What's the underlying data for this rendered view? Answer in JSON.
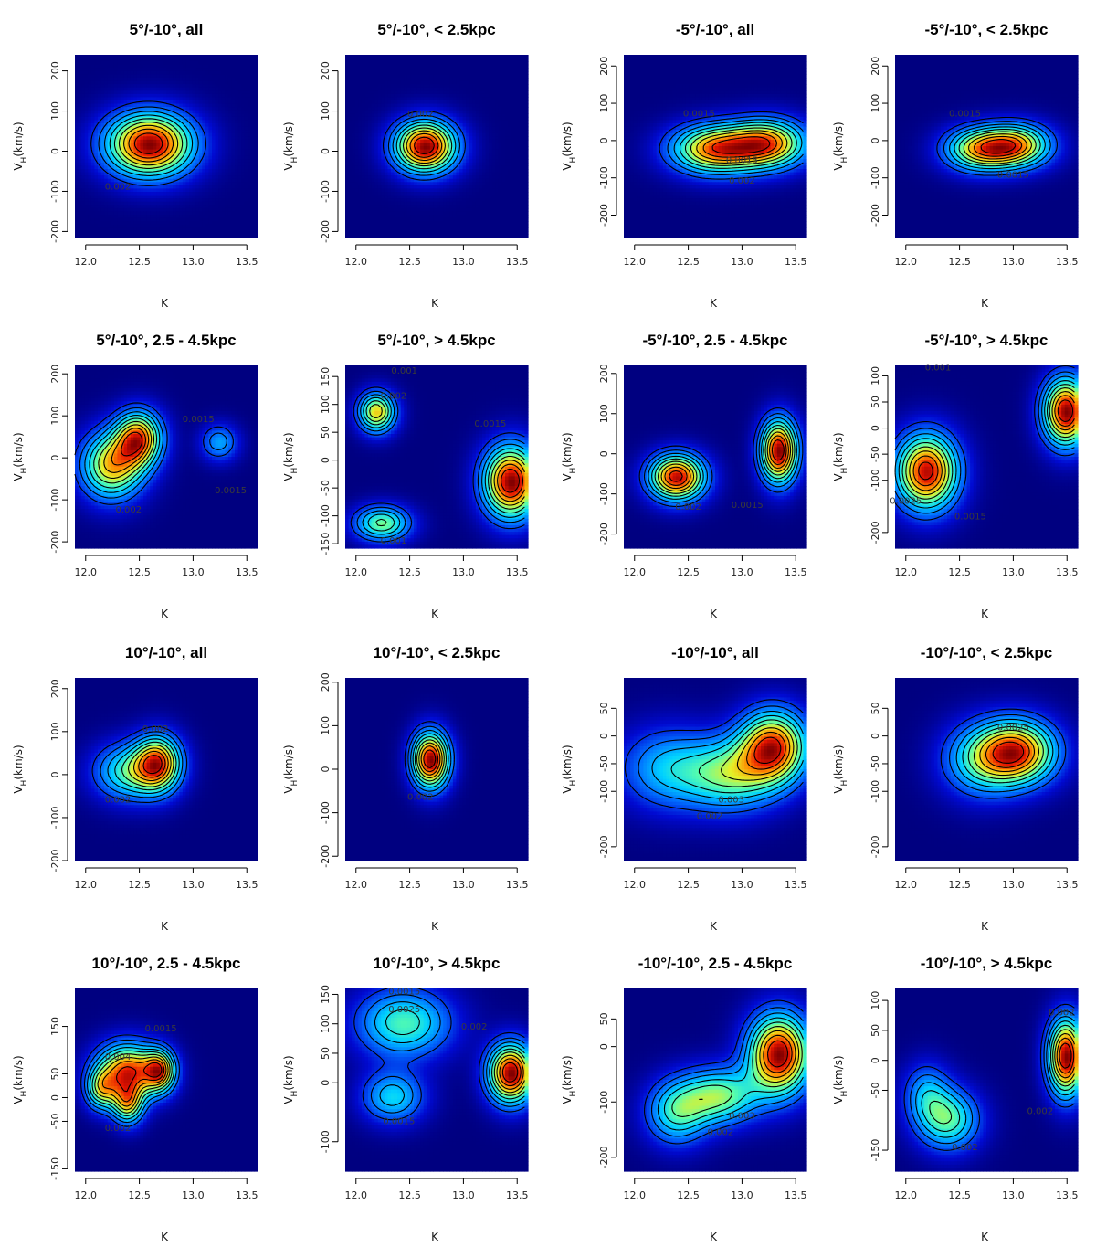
{
  "figure": {
    "xlabel": "K",
    "ylabel": "V",
    "ylabel_sub": "H",
    "ylabel_unit": "(km/s)"
  },
  "chart_data": [
    {
      "type": "heatmap",
      "title": "5°/-10°, all",
      "xlim": [
        11.9,
        13.6
      ],
      "ylim": [
        -215,
        240
      ],
      "xticks": [
        12.0,
        12.5,
        13.0,
        13.5
      ],
      "yticks": [
        -200,
        -100,
        0,
        100,
        200
      ],
      "blobs": [
        {
          "x": 12.6,
          "y": 15,
          "sx": 0.28,
          "sy": 55,
          "a": 1.0
        }
      ],
      "contour_labels": [
        {
          "text": "0.002",
          "x": 12.3,
          "y": -95
        }
      ]
    },
    {
      "type": "heatmap",
      "title": "5°/-10°, < 2.5kpc",
      "xlim": [
        11.9,
        13.6
      ],
      "ylim": [
        -215,
        240
      ],
      "xticks": [
        12.0,
        12.5,
        13.0,
        13.5
      ],
      "yticks": [
        -200,
        -100,
        0,
        100,
        200
      ],
      "blobs": [
        {
          "x": 12.65,
          "y": 10,
          "sx": 0.2,
          "sy": 45,
          "a": 1.0
        }
      ],
      "contour_labels": [
        {
          "text": "0.002",
          "x": 12.6,
          "y": 85
        }
      ]
    },
    {
      "type": "heatmap",
      "title": "-5°/-10°, all",
      "xlim": [
        11.9,
        13.6
      ],
      "ylim": [
        -260,
        230
      ],
      "xticks": [
        12.0,
        12.5,
        13.0,
        13.5
      ],
      "yticks": [
        -200,
        -100,
        0,
        100,
        200
      ],
      "blobs": [
        {
          "x": 12.75,
          "y": -25,
          "sx": 0.28,
          "sy": 45,
          "a": 1.0
        },
        {
          "x": 13.25,
          "y": -10,
          "sx": 0.25,
          "sy": 45,
          "a": 0.95
        }
      ],
      "contour_labels": [
        {
          "text": "0.0015",
          "x": 12.6,
          "y": 65
        },
        {
          "text": "0.0015",
          "x": 13.0,
          "y": -60
        },
        {
          "text": "0.002",
          "x": 13.0,
          "y": -115
        }
      ]
    },
    {
      "type": "heatmap",
      "title": "-5°/-10°, < 2.5kpc",
      "xlim": [
        11.9,
        13.6
      ],
      "ylim": [
        -260,
        230
      ],
      "xticks": [
        12.0,
        12.5,
        13.0,
        13.5
      ],
      "yticks": [
        -200,
        -100,
        0,
        100,
        200
      ],
      "blobs": [
        {
          "x": 12.7,
          "y": -25,
          "sx": 0.23,
          "sy": 40,
          "a": 1.0
        },
        {
          "x": 13.05,
          "y": -15,
          "sx": 0.22,
          "sy": 40,
          "a": 0.95
        }
      ],
      "contour_labels": [
        {
          "text": "0.0015",
          "x": 12.55,
          "y": 65
        },
        {
          "text": "0.0015",
          "x": 13.0,
          "y": -100
        }
      ]
    },
    {
      "type": "heatmap",
      "title": "5°/-10°, 2.5 - 4.5kpc",
      "xlim": [
        11.9,
        13.6
      ],
      "ylim": [
        -215,
        220
      ],
      "xticks": [
        12.0,
        12.5,
        13.0,
        13.5
      ],
      "yticks": [
        -200,
        -100,
        0,
        100,
        200
      ],
      "blobs": [
        {
          "x": 12.5,
          "y": 45,
          "sx": 0.15,
          "sy": 45,
          "a": 1.0
        },
        {
          "x": 12.25,
          "y": -20,
          "sx": 0.2,
          "sy": 55,
          "a": 0.9
        },
        {
          "x": 13.25,
          "y": 35,
          "sx": 0.12,
          "sy": 30,
          "a": 0.4
        }
      ],
      "contour_labels": [
        {
          "text": "0.0015",
          "x": 13.05,
          "y": 85
        },
        {
          "text": "0.002",
          "x": 12.4,
          "y": -130
        },
        {
          "text": "0.0015",
          "x": 13.35,
          "y": -85
        }
      ]
    },
    {
      "type": "heatmap",
      "title": "5°/-10°, > 4.5kpc",
      "xlim": [
        11.9,
        13.6
      ],
      "ylim": [
        -158,
        170
      ],
      "xticks": [
        12.0,
        12.5,
        13.0,
        13.5
      ],
      "yticks": [
        -150,
        -100,
        -50,
        0,
        50,
        100,
        150
      ],
      "blobs": [
        {
          "x": 13.45,
          "y": -40,
          "sx": 0.18,
          "sy": 45,
          "a": 1.0
        },
        {
          "x": 12.2,
          "y": 85,
          "sx": 0.12,
          "sy": 25,
          "a": 0.7
        },
        {
          "x": 12.25,
          "y": -115,
          "sx": 0.18,
          "sy": 22,
          "a": 0.55
        }
      ],
      "contour_labels": [
        {
          "text": "0.001",
          "x": 12.45,
          "y": 155
        },
        {
          "text": "0.002",
          "x": 12.35,
          "y": 110
        },
        {
          "text": "0.0015",
          "x": 13.25,
          "y": 60
        },
        {
          "text": "0.001",
          "x": 12.35,
          "y": -150
        }
      ]
    },
    {
      "type": "heatmap",
      "title": "-5°/-10°, 2.5 - 4.5kpc",
      "xlim": [
        11.9,
        13.6
      ],
      "ylim": [
        -235,
        220
      ],
      "xticks": [
        12.0,
        12.5,
        13.0,
        13.5
      ],
      "yticks": [
        -200,
        -100,
        0,
        100,
        200
      ],
      "blobs": [
        {
          "x": 12.4,
          "y": -60,
          "sx": 0.18,
          "sy": 40,
          "a": 0.95
        },
        {
          "x": 13.35,
          "y": 5,
          "sx": 0.12,
          "sy": 55,
          "a": 1.0
        }
      ],
      "contour_labels": [
        {
          "text": "0.002",
          "x": 12.5,
          "y": -140
        },
        {
          "text": "0.0015",
          "x": 13.05,
          "y": -135
        }
      ]
    },
    {
      "type": "heatmap",
      "title": "-5°/-10°, > 4.5kpc",
      "xlim": [
        11.9,
        13.6
      ],
      "ylim": [
        -230,
        120
      ],
      "xticks": [
        12.0,
        12.5,
        13.0,
        13.5
      ],
      "yticks": [
        -200,
        -100,
        -50,
        0,
        50,
        100
      ],
      "blobs": [
        {
          "x": 12.2,
          "y": -85,
          "sx": 0.2,
          "sy": 50,
          "a": 0.95
        },
        {
          "x": 13.5,
          "y": 30,
          "sx": 0.15,
          "sy": 45,
          "a": 1.0
        }
      ],
      "contour_labels": [
        {
          "text": "0.001",
          "x": 12.3,
          "y": 110
        },
        {
          "text": "0.0025",
          "x": 12.0,
          "y": -145
        },
        {
          "text": "0.0015",
          "x": 12.6,
          "y": -175
        }
      ]
    },
    {
      "type": "heatmap",
      "title": "10°/-10°, all",
      "xlim": [
        11.9,
        13.6
      ],
      "ylim": [
        -200,
        225
      ],
      "xticks": [
        12.0,
        12.5,
        13.0,
        13.5
      ],
      "yticks": [
        -200,
        -100,
        0,
        100,
        200
      ],
      "blobs": [
        {
          "x": 12.68,
          "y": 25,
          "sx": 0.15,
          "sy": 45,
          "a": 1.0
        },
        {
          "x": 12.4,
          "y": 5,
          "sx": 0.22,
          "sy": 45,
          "a": 0.6
        }
      ],
      "contour_labels": [
        {
          "text": "0.002",
          "x": 12.65,
          "y": 100
        },
        {
          "text": "0.002",
          "x": 12.3,
          "y": -65
        }
      ]
    },
    {
      "type": "heatmap",
      "title": "10°/-10°, < 2.5kpc",
      "xlim": [
        11.9,
        13.6
      ],
      "ylim": [
        -210,
        210
      ],
      "xticks": [
        12.0,
        12.5,
        13.0,
        13.5
      ],
      "yticks": [
        -200,
        -100,
        0,
        100,
        200
      ],
      "blobs": [
        {
          "x": 12.7,
          "y": 20,
          "sx": 0.12,
          "sy": 45,
          "a": 1.0
        }
      ],
      "contour_labels": [
        {
          "text": "0.002",
          "x": 12.6,
          "y": -70
        }
      ]
    },
    {
      "type": "heatmap",
      "title": "-10°/-10°, all",
      "xlim": [
        11.9,
        13.6
      ],
      "ylim": [
        -225,
        105
      ],
      "xticks": [
        12.0,
        12.5,
        13.0,
        13.5
      ],
      "yticks": [
        -200,
        -100,
        -50,
        0,
        50
      ],
      "blobs": [
        {
          "x": 13.3,
          "y": -20,
          "sx": 0.22,
          "sy": 45,
          "a": 1.0
        },
        {
          "x": 12.9,
          "y": -70,
          "sx": 0.3,
          "sy": 45,
          "a": 0.6
        },
        {
          "x": 12.3,
          "y": -60,
          "sx": 0.3,
          "sy": 50,
          "a": 0.4
        }
      ],
      "contour_labels": [
        {
          "text": "0.003",
          "x": 12.9,
          "y": -120
        },
        {
          "text": "0.002",
          "x": 12.7,
          "y": -150
        }
      ]
    },
    {
      "type": "heatmap",
      "title": "-10°/-10°, < 2.5kpc",
      "xlim": [
        11.9,
        13.6
      ],
      "ylim": [
        -225,
        105
      ],
      "xticks": [
        12.0,
        12.5,
        13.0,
        13.5
      ],
      "yticks": [
        -200,
        -100,
        -50,
        0,
        50
      ],
      "blobs": [
        {
          "x": 13.05,
          "y": -30,
          "sx": 0.25,
          "sy": 40,
          "a": 1.0
        },
        {
          "x": 12.7,
          "y": -45,
          "sx": 0.25,
          "sy": 45,
          "a": 0.5
        }
      ],
      "contour_labels": [
        {
          "text": "0.0025",
          "x": 13.0,
          "y": 10
        }
      ]
    },
    {
      "type": "heatmap",
      "title": "10°/-10°, 2.5 - 4.5kpc",
      "xlim": [
        11.9,
        13.6
      ],
      "ylim": [
        -155,
        230
      ],
      "xticks": [
        12.0,
        12.5,
        13.0,
        13.5
      ],
      "yticks": [
        -150,
        -50,
        0,
        50,
        150
      ],
      "blobs": [
        {
          "x": 12.4,
          "y": 55,
          "sx": 0.2,
          "sy": 40,
          "a": 0.9
        },
        {
          "x": 12.7,
          "y": 55,
          "sx": 0.1,
          "sy": 30,
          "a": 0.7
        },
        {
          "x": 12.4,
          "y": -15,
          "sx": 0.1,
          "sy": 30,
          "a": 0.6
        },
        {
          "x": 12.15,
          "y": 15,
          "sx": 0.1,
          "sy": 30,
          "a": 0.5
        }
      ],
      "contour_labels": [
        {
          "text": "0.004",
          "x": 12.3,
          "y": 80
        },
        {
          "text": "0.0015",
          "x": 12.7,
          "y": 140
        },
        {
          "text": "0.002",
          "x": 12.3,
          "y": -70
        }
      ]
    },
    {
      "type": "heatmap",
      "title": "10°/-10°, > 4.5kpc",
      "xlim": [
        11.9,
        13.6
      ],
      "ylim": [
        -150,
        160
      ],
      "xticks": [
        12.0,
        12.5,
        13.0,
        13.5
      ],
      "yticks": [
        -100,
        0,
        50,
        100,
        150
      ],
      "blobs": [
        {
          "x": 13.45,
          "y": 15,
          "sx": 0.15,
          "sy": 35,
          "a": 1.0
        },
        {
          "x": 12.45,
          "y": 100,
          "sx": 0.3,
          "sy": 40,
          "a": 0.5
        },
        {
          "x": 12.35,
          "y": -25,
          "sx": 0.2,
          "sy": 30,
          "a": 0.4
        }
      ],
      "contour_labels": [
        {
          "text": "0.0015",
          "x": 12.45,
          "y": 150
        },
        {
          "text": "0.0025",
          "x": 12.45,
          "y": 120
        },
        {
          "text": "0.002",
          "x": 13.1,
          "y": 90
        },
        {
          "text": "0.0015",
          "x": 12.4,
          "y": -70
        }
      ]
    },
    {
      "type": "heatmap",
      "title": "-10°/-10°, 2.5 - 4.5kpc",
      "xlim": [
        11.9,
        13.6
      ],
      "ylim": [
        -225,
        105
      ],
      "xticks": [
        12.0,
        12.5,
        13.0,
        13.5
      ],
      "yticks": [
        -200,
        -100,
        0,
        50
      ],
      "blobs": [
        {
          "x": 13.35,
          "y": -15,
          "sx": 0.2,
          "sy": 50,
          "a": 1.0
        },
        {
          "x": 12.8,
          "y": -90,
          "sx": 0.25,
          "sy": 35,
          "a": 0.55
        },
        {
          "x": 12.4,
          "y": -120,
          "sx": 0.2,
          "sy": 40,
          "a": 0.45
        }
      ],
      "contour_labels": [
        {
          "text": "0.003",
          "x": 13.0,
          "y": -130
        },
        {
          "text": "0.002",
          "x": 12.8,
          "y": -160
        }
      ]
    },
    {
      "type": "heatmap",
      "title": "-10°/-10°, > 4.5kpc",
      "xlim": [
        11.9,
        13.6
      ],
      "ylim": [
        -185,
        120
      ],
      "xticks": [
        12.0,
        12.5,
        13.0,
        13.5
      ],
      "yticks": [
        -150,
        -50,
        0,
        50,
        100
      ],
      "blobs": [
        {
          "x": 13.5,
          "y": 5,
          "sx": 0.12,
          "sy": 45,
          "a": 1.0
        },
        {
          "x": 12.4,
          "y": -100,
          "sx": 0.2,
          "sy": 35,
          "a": 0.5
        },
        {
          "x": 12.2,
          "y": -55,
          "sx": 0.15,
          "sy": 35,
          "a": 0.3
        }
      ],
      "contour_labels": [
        {
          "text": "0.002",
          "x": 13.45,
          "y": 75
        },
        {
          "text": "0.002",
          "x": 13.25,
          "y": -90
        },
        {
          "text": "0.002",
          "x": 12.55,
          "y": -150
        }
      ]
    }
  ]
}
